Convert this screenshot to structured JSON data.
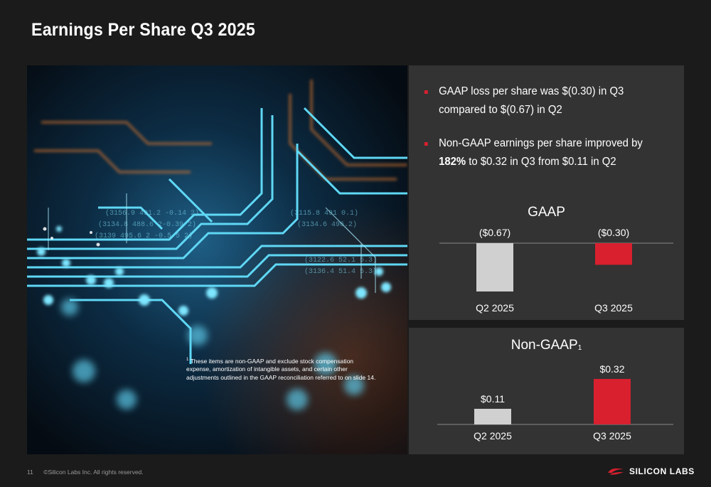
{
  "slide": {
    "title": "Earnings Per Share Q3 2025",
    "page_number": "11",
    "copyright": "©Silicon Labs Inc. All rights reserved.",
    "logo_text": "SILICON LABS"
  },
  "bullets": [
    {
      "text": "GAAP loss per share was $(0.30) in Q3 compared to $(0.67) in Q2"
    },
    {
      "bold": "182%",
      "text": " to $0.32 in Q3 from $0.11 in Q2",
      "lead": "Non-GAAP earnings per share improved by "
    }
  ],
  "footnote": {
    "marker": "1",
    "text": "These items are non-GAAP and exclude stock compensation expense, amortization of intangible assets, and certain other adjustments outlined in the GAAP reconciliation referred to on slide 14."
  },
  "colors": {
    "background": "#1b1b1b",
    "panel": "#333333",
    "accent_red": "#d8202f",
    "gray_bar": "#d0d0d0"
  },
  "chart_data": [
    {
      "type": "bar",
      "title": "GAAP",
      "categories": [
        "Q2 2025",
        "Q3 2025"
      ],
      "values": [
        -0.67,
        -0.3
      ],
      "data_labels": [
        "($0.67)",
        "($0.30)"
      ],
      "bar_colors": [
        "#d0d0d0",
        "#d8202f"
      ],
      "ylim": [
        -0.67,
        0
      ]
    },
    {
      "type": "bar",
      "title": "Non-GAAP",
      "title_superscript": "1",
      "categories": [
        "Q2 2025",
        "Q3 2025"
      ],
      "values": [
        0.11,
        0.32
      ],
      "data_labels": [
        "$0.11",
        "$0.32"
      ],
      "bar_colors": [
        "#d0d0d0",
        "#d8202f"
      ],
      "ylim": [
        0,
        0.32
      ]
    }
  ]
}
